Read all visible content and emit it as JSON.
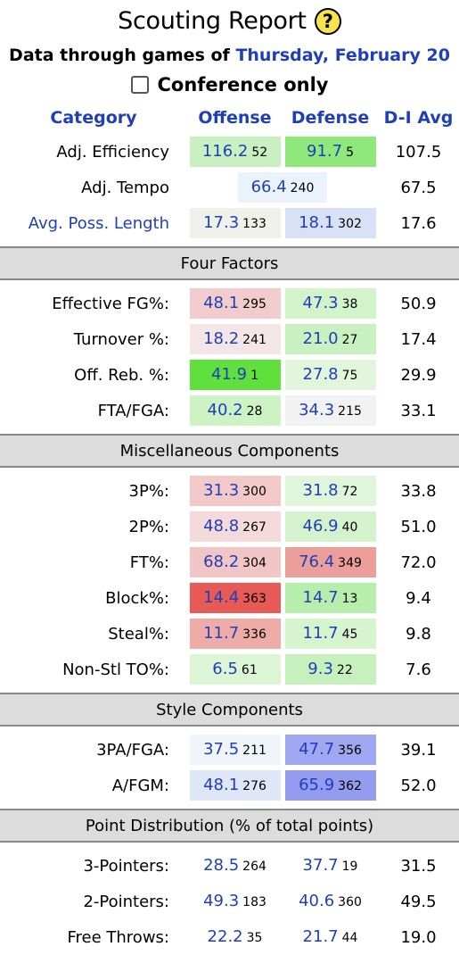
{
  "header": {
    "title": "Scouting Report",
    "help_icon": "?",
    "subtitle_prefix": "Data through games of ",
    "subtitle_date": "Thursday, February 20",
    "conference_only_label": "Conference only"
  },
  "columns": {
    "category": "Category",
    "offense": "Offense",
    "defense": "Defense",
    "avg": "D-I Avg"
  },
  "top_rows": [
    {
      "label": "Adj. Efficiency",
      "o_val": "116.2",
      "o_rank": "52",
      "o_color": "#c8f0c0",
      "d_val": "91.7",
      "d_rank": "5",
      "d_color": "#8fe87c",
      "avg": "107.5"
    },
    {
      "label": "Adj. Tempo",
      "tempo_val": "66.4",
      "tempo_rank": "240",
      "tempo_color": "#eaf2fb",
      "avg": "67.5"
    },
    {
      "label": "Avg. Poss. Length",
      "o_val": "17.3",
      "o_rank": "133",
      "o_color": "#f1f1ec",
      "d_val": "18.1",
      "d_rank": "302",
      "d_color": "#d9e1f7",
      "avg": "17.6"
    }
  ],
  "sections": {
    "four_factors": "Four Factors",
    "misc": "Miscellaneous Components",
    "style": "Style Components",
    "points": "Point Distribution (% of total points)"
  },
  "four_factors": [
    {
      "label": "Effective FG%:",
      "o_val": "48.1",
      "o_rank": "295",
      "o_color": "#f2cccc",
      "d_val": "47.3",
      "d_rank": "38",
      "d_color": "#d3f3cb",
      "avg": "50.9"
    },
    {
      "label": "Turnover %:",
      "o_val": "18.2",
      "o_rank": "241",
      "o_color": "#f4e6e6",
      "d_val": "21.0",
      "d_rank": "27",
      "d_color": "#c9f1bf",
      "avg": "17.4"
    },
    {
      "label": "Off. Reb. %:",
      "o_val": "41.9",
      "o_rank": "1",
      "o_color": "#5fe03c",
      "d_val": "27.8",
      "d_rank": "75",
      "d_color": "#e2f6dc",
      "avg": "29.9"
    },
    {
      "label": "FTA/FGA:",
      "o_val": "40.2",
      "o_rank": "28",
      "o_color": "#cdf2c4",
      "d_val": "34.3",
      "d_rank": "215",
      "d_color": "#f2f2f2",
      "avg": "33.1"
    }
  ],
  "misc": [
    {
      "label": "3P%:",
      "o_val": "31.3",
      "o_rank": "300",
      "o_color": "#f2c8c8",
      "d_val": "31.8",
      "d_rank": "72",
      "d_color": "#e0f6da",
      "avg": "33.8"
    },
    {
      "label": "2P%:",
      "o_val": "48.8",
      "o_rank": "267",
      "o_color": "#f4dada",
      "d_val": "46.9",
      "d_rank": "40",
      "d_color": "#d4f3cc",
      "avg": "51.0"
    },
    {
      "label": "FT%:",
      "o_val": "68.2",
      "o_rank": "304",
      "o_color": "#f2c6c6",
      "d_val": "76.4",
      "d_rank": "349",
      "d_color": "#ec9f9a",
      "avg": "72.0"
    },
    {
      "label": "Block%:",
      "o_val": "14.4",
      "o_rank": "363",
      "o_color": "#e85a55",
      "d_val": "14.7",
      "d_rank": "13",
      "d_color": "#b8eeab",
      "avg": "9.4"
    },
    {
      "label": "Steal%:",
      "o_val": "11.7",
      "o_rank": "336",
      "o_color": "#eeaca8",
      "d_val": "11.7",
      "d_rank": "45",
      "d_color": "#d6f4ce",
      "avg": "9.8"
    },
    {
      "label": "Non-Stl TO%:",
      "o_val": "6.5",
      "o_rank": "61",
      "o_color": "#dcf5d4",
      "d_val": "9.3",
      "d_rank": "22",
      "d_color": "#c7f1bc",
      "avg": "7.6"
    }
  ],
  "style": [
    {
      "label": "3PA/FGA:",
      "o_val": "37.5",
      "o_rank": "211",
      "o_color": "#f0f5fc",
      "d_val": "47.7",
      "d_rank": "356",
      "d_color": "#9ea7ef",
      "avg": "39.1"
    },
    {
      "label": "A/FGM:",
      "o_val": "48.1",
      "o_rank": "276",
      "o_color": "#dfe6f8",
      "d_val": "65.9",
      "d_rank": "362",
      "d_color": "#939cee",
      "avg": "52.0"
    }
  ],
  "points": [
    {
      "label": "3-Pointers:",
      "o_val": "28.5",
      "o_rank": "264",
      "d_val": "37.7",
      "d_rank": "19",
      "avg": "31.5"
    },
    {
      "label": "2-Pointers:",
      "o_val": "49.3",
      "o_rank": "183",
      "d_val": "40.6",
      "d_rank": "360",
      "avg": "49.5"
    },
    {
      "label": "Free Throws:",
      "o_val": "22.2",
      "o_rank": "35",
      "d_val": "21.7",
      "d_rank": "44",
      "avg": "19.0"
    }
  ]
}
